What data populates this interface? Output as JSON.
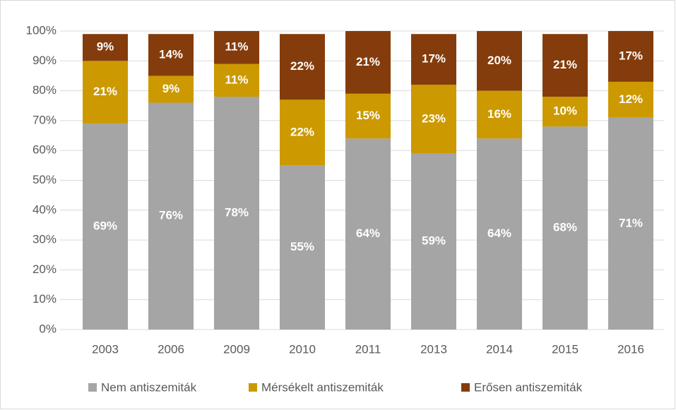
{
  "chart_data": {
    "type": "stacked_bar",
    "categories": [
      "2003",
      "2006",
      "2009",
      "2010",
      "2011",
      "2013",
      "2014",
      "2015",
      "2016"
    ],
    "series": [
      {
        "name": "Nem antiszemiták",
        "color": "#a5a5a5",
        "values": [
          69,
          76,
          78,
          55,
          64,
          59,
          64,
          68,
          71
        ],
        "value_labels": [
          "69%",
          "76%",
          "78%",
          "55%",
          "64%",
          "59%",
          "64%",
          "68%",
          "71%"
        ]
      },
      {
        "name": "Mérsékelt antiszemiták",
        "color": "#cc9900",
        "values": [
          21,
          9,
          11,
          22,
          15,
          23,
          16,
          10,
          12
        ],
        "value_labels": [
          "21%",
          "9%",
          "11%",
          "22%",
          "15%",
          "23%",
          "16%",
          "10%",
          "12%"
        ]
      },
      {
        "name": "Erősen antiszemiták",
        "color": "#843c0c",
        "values": [
          9,
          14,
          11,
          22,
          21,
          17,
          20,
          21,
          17
        ],
        "value_labels": [
          "9%",
          "14%",
          "11%",
          "22%",
          "21%",
          "17%",
          "20%",
          "21%",
          "17%"
        ]
      }
    ],
    "ylim": [
      0,
      100
    ],
    "yticks": [
      {
        "value": 0,
        "label": "0%"
      },
      {
        "value": 10,
        "label": "10%"
      },
      {
        "value": 20,
        "label": "20%"
      },
      {
        "value": 30,
        "label": "30%"
      },
      {
        "value": 40,
        "label": "40%"
      },
      {
        "value": 50,
        "label": "50%"
      },
      {
        "value": 60,
        "label": "60%"
      },
      {
        "value": 70,
        "label": "70%"
      },
      {
        "value": 80,
        "label": "80%"
      },
      {
        "value": 90,
        "label": "90%"
      },
      {
        "value": 100,
        "label": "100%"
      }
    ],
    "grid": true,
    "legend": "bottom"
  }
}
